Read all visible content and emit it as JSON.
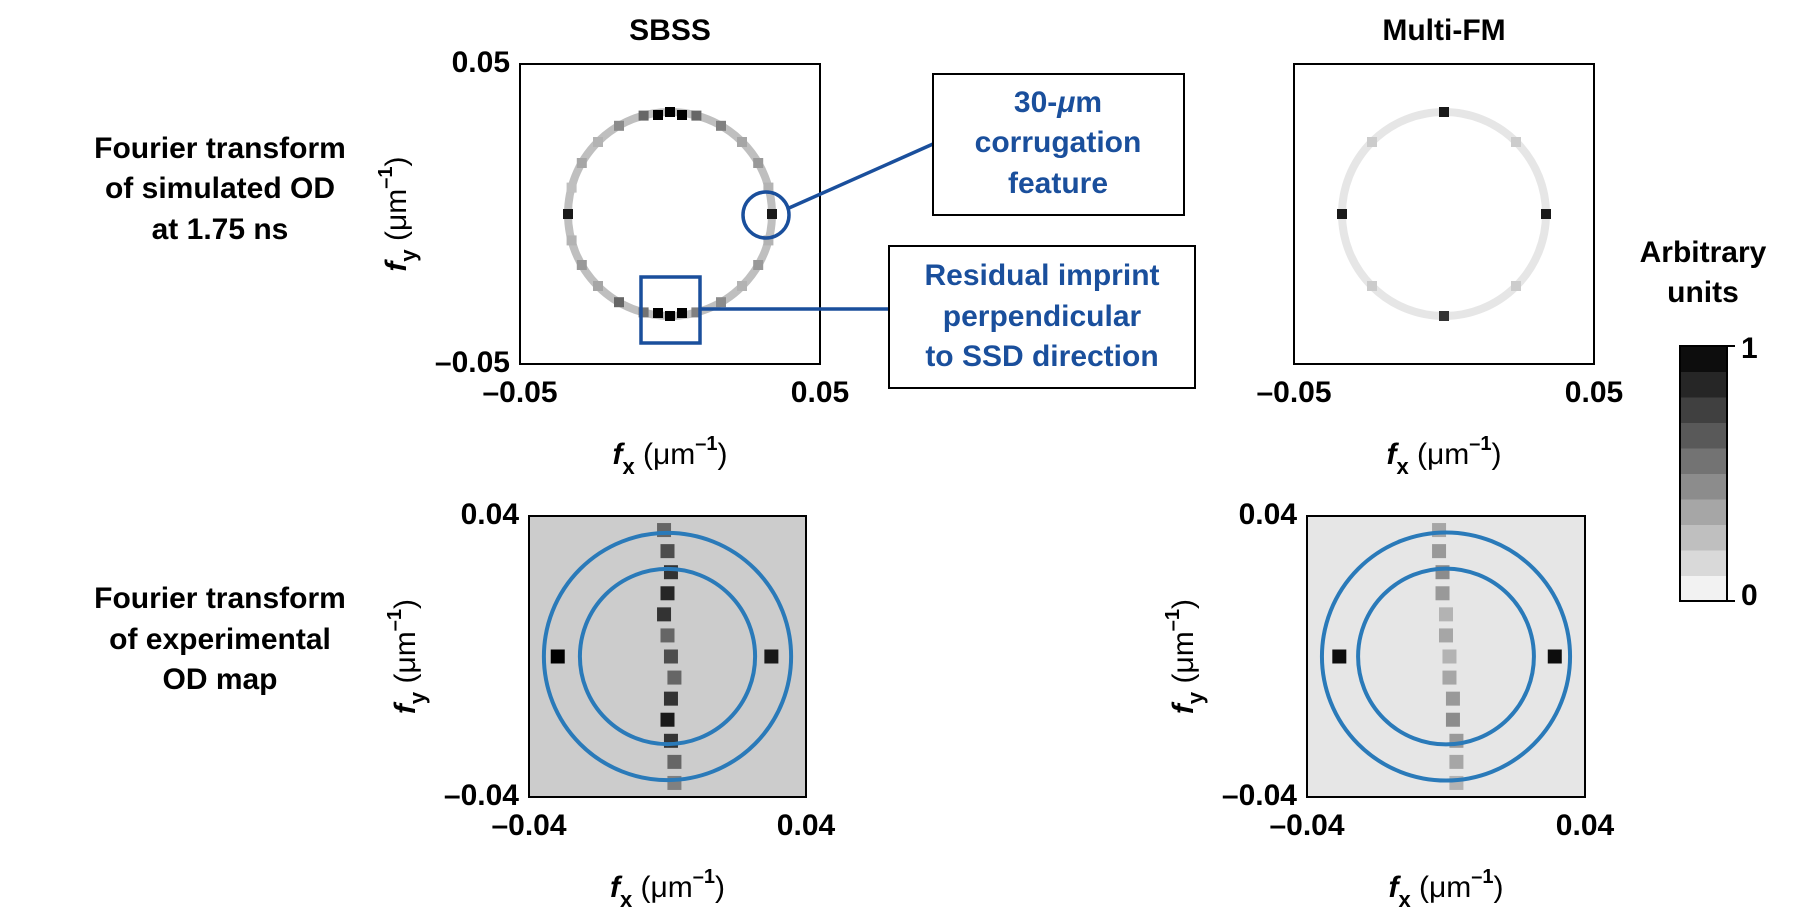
{
  "chart_data": [
    {
      "type": "heatmap",
      "title": "SBSS",
      "xlabel": [
        "f",
        "x",
        " (μm",
        "–1",
        ")"
      ],
      "ylabel": [
        "f",
        "y",
        " (μm",
        "–1",
        ")"
      ],
      "xlim": [
        -0.05,
        0.05
      ],
      "ylim": [
        -0.05,
        0.05
      ],
      "xticks": [
        {
          "value": -0.05,
          "label": "–0.05"
        },
        0.05
      ],
      "yticks": [
        {
          "value": -0.05,
          "label": "–0.05"
        },
        0.05
      ],
      "background": 0,
      "ring": {
        "radius": 0.034,
        "value": 0.25
      },
      "x": [
        0.034,
        0.0328,
        0.0294,
        0.024,
        0.017,
        0.0088,
        0,
        -0.0088,
        -0.017,
        -0.024,
        -0.0294,
        -0.0328,
        -0.034,
        -0.0328,
        -0.0294,
        -0.024,
        -0.017,
        -0.0088,
        0,
        0.0088,
        0.017,
        0.024,
        0.0294,
        0.0328,
        -0.004,
        0.004,
        -0.004,
        0.004
      ],
      "y": [
        0,
        0.0088,
        0.017,
        0.024,
        0.0294,
        0.0328,
        0.034,
        0.0328,
        0.0294,
        0.024,
        0.017,
        0.0088,
        0,
        -0.0088,
        -0.017,
        -0.024,
        -0.0294,
        -0.0328,
        -0.034,
        -0.0328,
        -0.0294,
        -0.024,
        -0.017,
        -0.0088,
        0.033,
        0.033,
        -0.033,
        -0.033
      ],
      "values": [
        0.9,
        0.3,
        0.4,
        0.35,
        0.5,
        0.6,
        1,
        0.6,
        0.45,
        0.3,
        0.35,
        0.25,
        0.9,
        0.3,
        0.4,
        0.35,
        0.6,
        0.55,
        1,
        0.5,
        0.45,
        0.3,
        0.4,
        0.3,
        1,
        1,
        1,
        1
      ]
    },
    {
      "type": "heatmap",
      "title": "Multi-FM",
      "xlabel": [
        "f",
        "x",
        " (μm",
        "–1",
        ")"
      ],
      "xlim": [
        -0.05,
        0.05
      ],
      "ylim": [
        -0.05,
        0.05
      ],
      "xticks": [
        {
          "value": -0.05,
          "label": "–0.05"
        },
        0.05
      ],
      "background": 0,
      "ring": {
        "radius": 0.034,
        "value": 0.1
      },
      "x": [
        0.034,
        -0.034,
        0,
        0,
        0.024,
        -0.024,
        0.024,
        -0.024
      ],
      "y": [
        0,
        0,
        0.034,
        -0.034,
        0.024,
        0.024,
        -0.024,
        -0.024
      ],
      "values": [
        0.9,
        0.9,
        0.9,
        0.8,
        0.2,
        0.2,
        0.2,
        0.2
      ]
    },
    {
      "type": "heatmap",
      "xlabel": [
        "f",
        "x",
        " (μm",
        "–1",
        ")"
      ],
      "ylabel": [
        "f",
        "y",
        " (μm",
        "–1",
        ")"
      ],
      "xlim": [
        -0.04,
        0.04
      ],
      "ylim": [
        -0.04,
        0.04
      ],
      "xticks": [
        {
          "value": -0.04,
          "label": "–0.04"
        },
        0.04
      ],
      "yticks": [
        {
          "value": -0.04,
          "label": "–0.04"
        },
        0.04
      ],
      "background": 0.2,
      "circles": [
        0.0357,
        0.0253
      ],
      "x": [
        -0.0317,
        0.03,
        -0.001,
        0,
        0.001,
        0,
        -0.001,
        0,
        0.001,
        0.002,
        0.001,
        0,
        0.001,
        0.002,
        0.002
      ],
      "y": [
        0,
        0,
        0.036,
        0.03,
        0.024,
        0.018,
        0.012,
        0.006,
        0,
        -0.006,
        -0.012,
        -0.018,
        -0.024,
        -0.03,
        -0.036
      ],
      "values": [
        1,
        0.9,
        0.6,
        0.7,
        0.8,
        0.85,
        0.8,
        0.6,
        0.7,
        0.6,
        0.8,
        0.9,
        0.8,
        0.6,
        0.5
      ]
    },
    {
      "type": "heatmap",
      "xlabel": [
        "f",
        "x",
        " (μm",
        "–1",
        ")"
      ],
      "ylabel": [
        "f",
        "y",
        " (μm",
        "–1",
        ")"
      ],
      "xlim": [
        -0.04,
        0.04
      ],
      "ylim": [
        -0.04,
        0.04
      ],
      "xticks": [
        {
          "value": -0.04,
          "label": "–0.04"
        },
        0.04
      ],
      "yticks": [
        {
          "value": -0.04,
          "label": "–0.04"
        },
        0.04
      ],
      "background": 0.1,
      "circles": [
        0.0357,
        0.0253
      ],
      "x": [
        -0.0307,
        0.0313,
        -0.002,
        -0.002,
        -0.001,
        -0.001,
        0,
        0,
        0.001,
        0.001,
        0.002,
        0.002,
        0.003,
        0.003,
        0.003
      ],
      "y": [
        0,
        0,
        0.036,
        0.03,
        0.024,
        0.018,
        0.012,
        0.006,
        0,
        -0.006,
        -0.012,
        -0.018,
        -0.024,
        -0.03,
        -0.036
      ],
      "values": [
        0.95,
        0.95,
        0.35,
        0.4,
        0.45,
        0.4,
        0.3,
        0.35,
        0.3,
        0.35,
        0.4,
        0.45,
        0.4,
        0.35,
        0.3
      ]
    }
  ],
  "row_labels": [
    [
      "Fourier transform",
      "of simulated OD",
      "at 1.75 ns"
    ],
    [
      "Fourier transform",
      "of experimental",
      "OD map"
    ]
  ],
  "annotations": [
    [
      [
        "30-",
        "μ",
        "m"
      ],
      "corrugation",
      "feature"
    ],
    [
      "Residual imprint",
      "perpendicular",
      "to SSD direction"
    ]
  ],
  "colorbar": {
    "label": [
      "Arbitrary",
      "units"
    ],
    "lim": [
      0,
      1
    ],
    "ticks": [
      0,
      1
    ]
  }
}
